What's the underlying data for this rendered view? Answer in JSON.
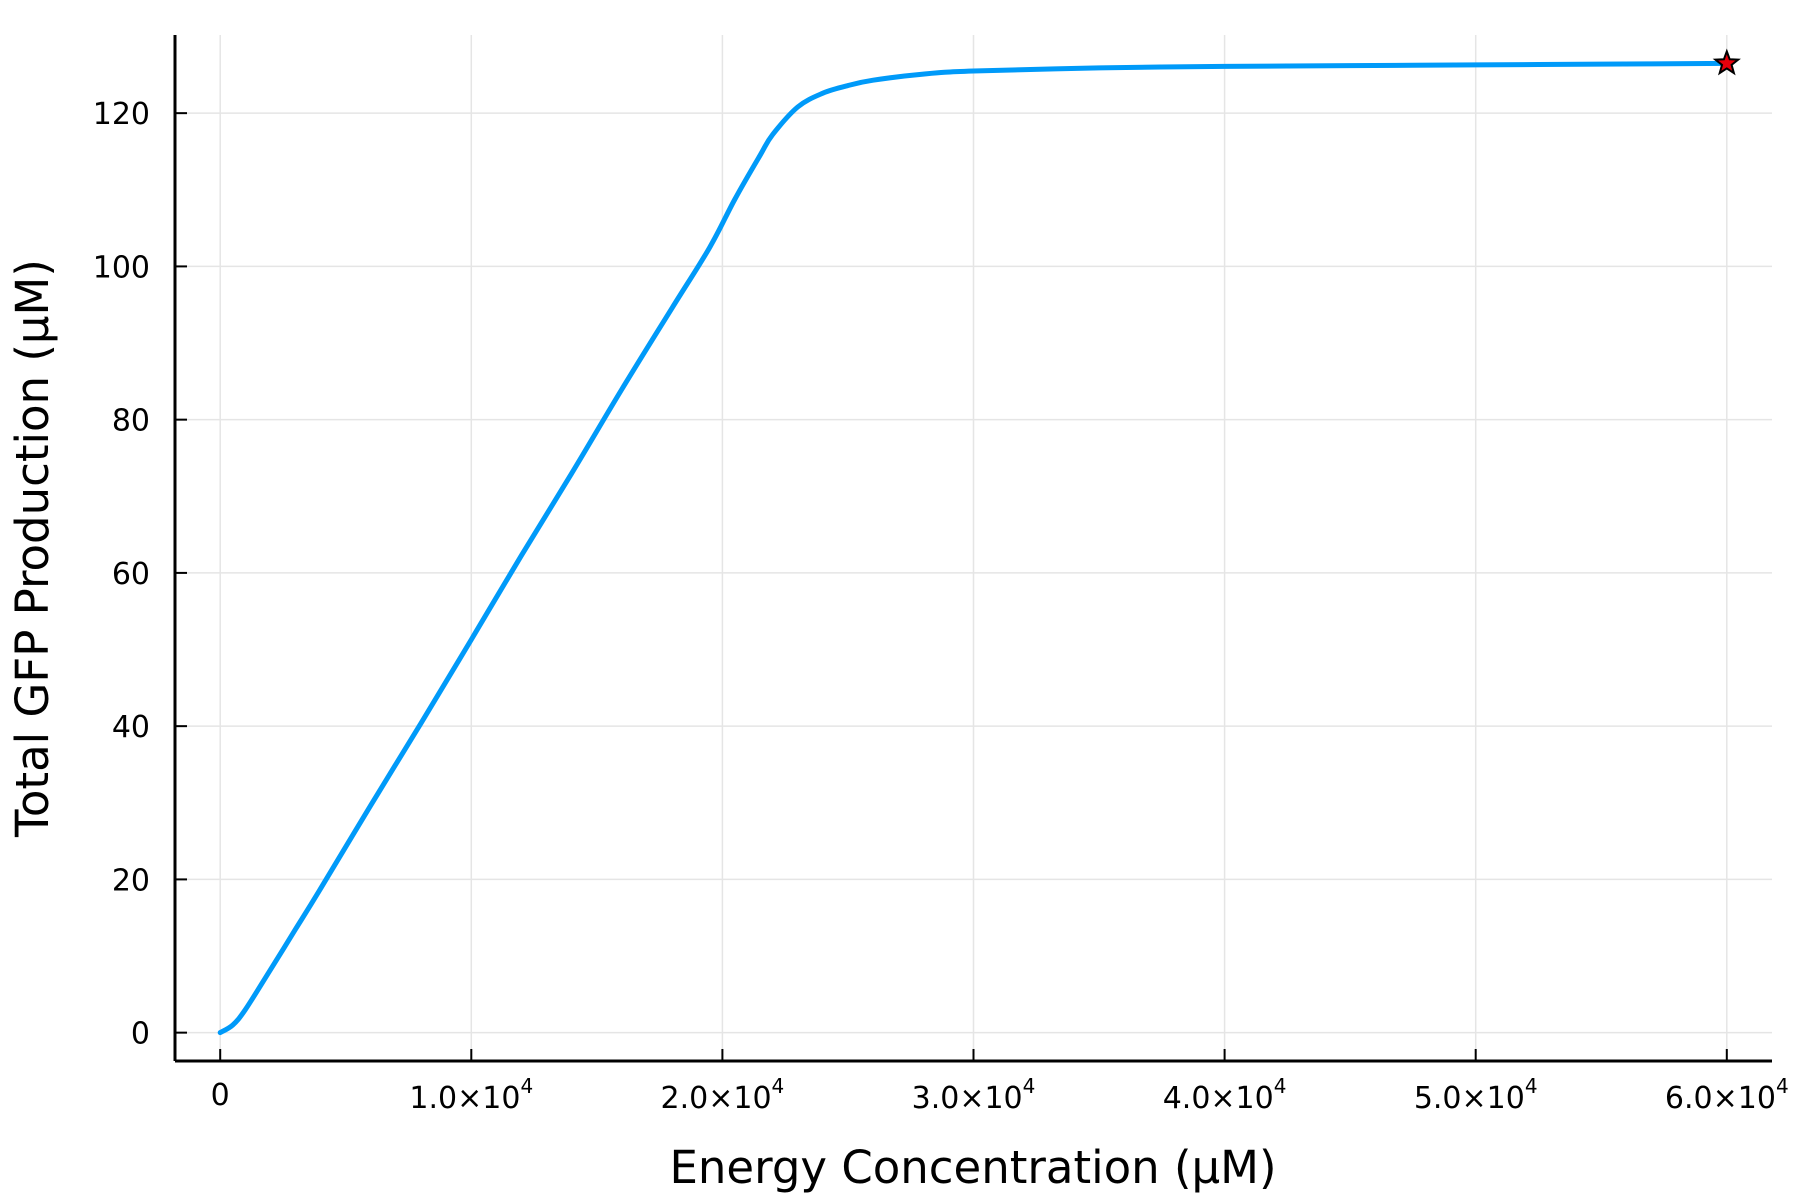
{
  "chart_data": {
    "type": "line",
    "xlabel": "Energy Concentration (μM)",
    "ylabel": "Total GFP Production (μM)",
    "xlim": [
      -1800,
      61800
    ],
    "ylim": [
      -3.7,
      130.2
    ],
    "grid": true,
    "x_ticks": [
      {
        "value": 0,
        "mantissa": "0",
        "exp": ""
      },
      {
        "value": 10000,
        "mantissa": "1.0×10",
        "exp": "4"
      },
      {
        "value": 20000,
        "mantissa": "2.0×10",
        "exp": "4"
      },
      {
        "value": 30000,
        "mantissa": "3.0×10",
        "exp": "4"
      },
      {
        "value": 40000,
        "mantissa": "4.0×10",
        "exp": "4"
      },
      {
        "value": 50000,
        "mantissa": "5.0×10",
        "exp": "4"
      },
      {
        "value": 60000,
        "mantissa": "6.0×10",
        "exp": "4"
      }
    ],
    "y_ticks": [
      {
        "value": 0,
        "label": "0"
      },
      {
        "value": 20,
        "label": "20"
      },
      {
        "value": 40,
        "label": "40"
      },
      {
        "value": 60,
        "label": "60"
      },
      {
        "value": 80,
        "label": "80"
      },
      {
        "value": 100,
        "label": "100"
      },
      {
        "value": 120,
        "label": "120"
      }
    ],
    "series": [
      {
        "color": "#009af9",
        "x": [
          0,
          500,
          1000,
          2000,
          3000,
          4000,
          6000,
          8000,
          10000,
          12000,
          14000,
          16000,
          18000,
          19500,
          20500,
          21500,
          22000,
          23000,
          24000,
          25000,
          26000,
          28000,
          30000,
          35000,
          40000,
          45000,
          50000,
          55000,
          60000
        ],
        "y": [
          0,
          1.0,
          3.0,
          8.2,
          13.5,
          18.8,
          29.7,
          40.4,
          51.3,
          62.3,
          73.0,
          84.0,
          94.6,
          102.5,
          108.8,
          114.5,
          117.2,
          120.8,
          122.6,
          123.6,
          124.3,
          125.1,
          125.5,
          125.9,
          126.1,
          126.2,
          126.3,
          126.4,
          126.5
        ]
      }
    ],
    "marker": {
      "x": 60000,
      "y": 126.5,
      "shape": "star",
      "color": "#e8000b",
      "edge_color": "#000000"
    },
    "colors": {
      "axis": "#000000",
      "grid": "#e5e5e5",
      "line": "#009af9"
    }
  }
}
